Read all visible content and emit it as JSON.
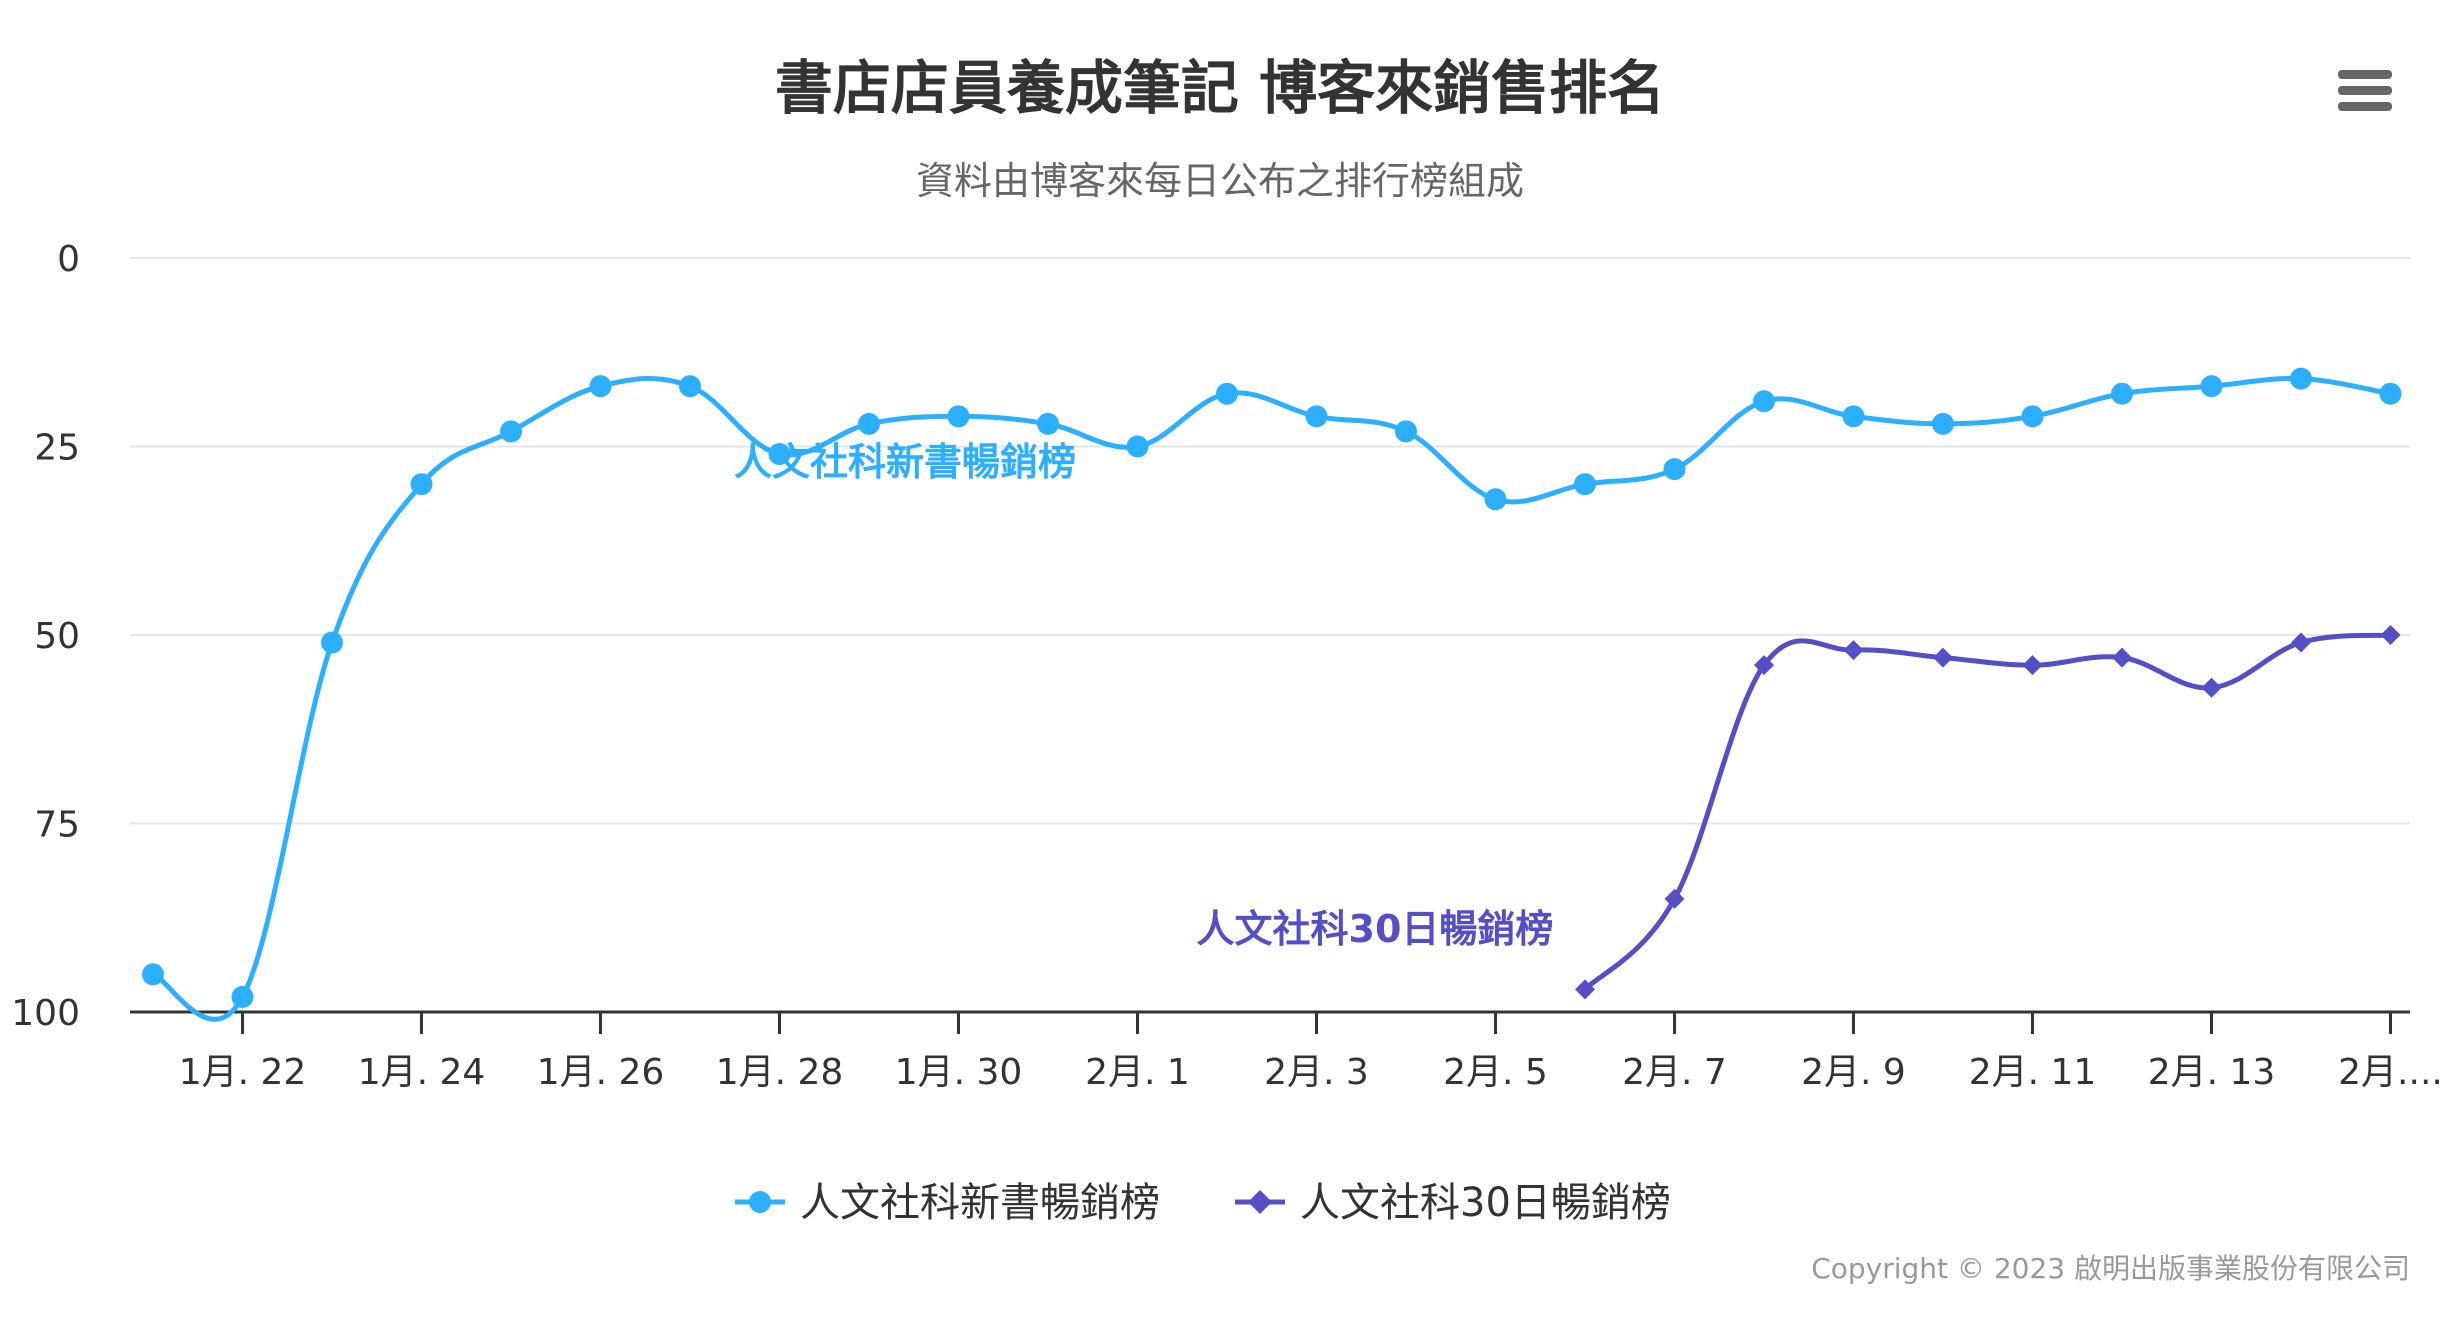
{
  "chart_data": {
    "type": "line",
    "title": "書店店員養成筆記 博客來銷售排名",
    "subtitle": "資料由博客來每日公布之排行榜組成",
    "yaxis": {
      "reversed": true,
      "ylim": [
        0,
        100
      ],
      "ticks": [
        "0",
        "25",
        "50",
        "75",
        "100"
      ]
    },
    "xaxis": {
      "tick_labels": [
        "1月. 22",
        "1月. 24",
        "1月. 26",
        "1月. 28",
        "1月. 30",
        "2月. 1",
        "2月. 3",
        "2月. 5",
        "2月. 7",
        "2月. 9",
        "2月. 11",
        "2月. 13",
        "2月...."
      ],
      "tick_indices": [
        1,
        3,
        5,
        7,
        9,
        11,
        13,
        15,
        17,
        19,
        21,
        23,
        25
      ]
    },
    "series": [
      {
        "name": "人文社科新書暢銷榜",
        "color": "#2caffe",
        "marker": "circle",
        "label": "人文社科新書暢銷榜",
        "values": [
          95,
          98,
          51,
          30,
          23,
          17,
          17,
          26,
          22,
          21,
          22,
          25,
          18,
          21,
          23,
          32,
          30,
          28,
          19,
          21,
          22,
          21,
          18,
          17,
          16,
          18
        ]
      },
      {
        "name": "人文社科30日暢銷榜",
        "color": "#544fc5",
        "marker": "diamond",
        "label": "人文社科30日暢銷榜",
        "values": [
          null,
          null,
          null,
          null,
          null,
          null,
          null,
          null,
          null,
          null,
          null,
          null,
          null,
          null,
          null,
          null,
          97,
          85,
          54,
          52,
          53,
          54,
          53,
          57,
          51,
          50
        ]
      }
    ],
    "legend": {
      "position": "bottom-center"
    },
    "credits": "Copyright © 2023 啟明出版事業股份有限公司"
  },
  "menu": {
    "icon": "menu-icon"
  }
}
